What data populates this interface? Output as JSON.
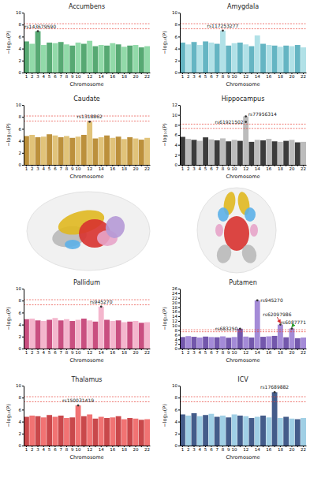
{
  "chart_data": [
    {
      "type": "manhattan",
      "title": "Accumbens",
      "x_label": "Chromosome",
      "y_label": "−log₁₀(P)",
      "categories": [
        "1",
        "2",
        "3",
        "4",
        "5",
        "6",
        "7",
        "8",
        "9",
        "10",
        null,
        "12",
        null,
        "14",
        null,
        "16",
        null,
        "18",
        null,
        "20",
        null,
        "22"
      ],
      "values": [
        5.2,
        4.8,
        6.9,
        4.6,
        5.0,
        4.9,
        5.1,
        4.7,
        4.5,
        5.0,
        4.8,
        5.3,
        4.4,
        4.6,
        4.5,
        4.9,
        4.7,
        4.3,
        4.5,
        4.6,
        4.2,
        4.4
      ],
      "colors": [
        "#3a9a5b",
        "#7fd49a",
        "#3a9a5b",
        "#7fd49a",
        "#3a9a5b",
        "#7fd49a",
        "#3a9a5b",
        "#7fd49a",
        "#3a9a5b",
        "#7fd49a",
        "#3a9a5b",
        "#7fd49a",
        "#3a9a5b",
        "#7fd49a",
        "#3a9a5b",
        "#7fd49a",
        "#3a9a5b",
        "#7fd49a",
        "#3a9a5b",
        "#7fd49a",
        "#3a9a5b",
        "#7fd49a"
      ],
      "ylim": [
        0,
        10
      ],
      "yticks": [
        0,
        2,
        4,
        6,
        8,
        10
      ],
      "threshold_lines": [
        7.3,
        8.15
      ],
      "annotations": [
        {
          "text": "rs143679590",
          "chromosome": 3,
          "y": 6.9
        }
      ]
    },
    {
      "type": "manhattan",
      "title": "Amygdala",
      "x_label": "Chromosome",
      "y_label": "−log₁₀(P)",
      "categories": [
        "1",
        "2",
        "3",
        "4",
        "5",
        "6",
        "7",
        "8",
        "9",
        "10",
        null,
        "12",
        null,
        "14",
        null,
        "16",
        null,
        "18",
        null,
        "20",
        null,
        "22"
      ],
      "values": [
        5.0,
        4.7,
        5.1,
        4.6,
        5.2,
        5.0,
        4.8,
        7.0,
        4.5,
        4.9,
        5.0,
        4.7,
        4.4,
        6.2,
        4.8,
        4.6,
        4.5,
        4.3,
        4.5,
        4.4,
        4.6,
        4.2
      ],
      "colors": [
        "#4aa8b8",
        "#a3dce3",
        "#4aa8b8",
        "#a3dce3",
        "#4aa8b8",
        "#a3dce3",
        "#4aa8b8",
        "#a3dce3",
        "#4aa8b8",
        "#a3dce3",
        "#4aa8b8",
        "#a3dce3",
        "#4aa8b8",
        "#a3dce3",
        "#4aa8b8",
        "#a3dce3",
        "#4aa8b8",
        "#a3dce3",
        "#4aa8b8",
        "#a3dce3",
        "#4aa8b8",
        "#a3dce3"
      ],
      "ylim": [
        0,
        10
      ],
      "yticks": [
        0,
        2,
        4,
        6,
        8,
        10
      ],
      "threshold_lines": [
        7.3,
        8.15
      ],
      "annotations": [
        {
          "text": "rs117253277",
          "chromosome": 8,
          "y": 7.0
        }
      ]
    },
    {
      "type": "manhattan",
      "title": "Caudate",
      "x_label": "Chromosome",
      "y_label": "−log₁₀(P)",
      "categories": [
        "1",
        "2",
        "3",
        "4",
        "5",
        "6",
        "7",
        "8",
        "9",
        "10",
        null,
        "12",
        null,
        "14",
        null,
        "16",
        null,
        "18",
        null,
        "20",
        null,
        "22"
      ],
      "values": [
        4.8,
        5.0,
        4.6,
        4.7,
        5.1,
        4.9,
        4.6,
        4.8,
        4.5,
        4.7,
        5.0,
        7.2,
        4.4,
        4.6,
        4.9,
        4.5,
        4.7,
        4.3,
        4.6,
        4.4,
        4.2,
        4.5
      ],
      "colors": [
        "#b07d1a",
        "#dcb863",
        "#b07d1a",
        "#dcb863",
        "#b07d1a",
        "#dcb863",
        "#b07d1a",
        "#dcb863",
        "#b07d1a",
        "#dcb863",
        "#b07d1a",
        "#dcb863",
        "#b07d1a",
        "#dcb863",
        "#b07d1a",
        "#dcb863",
        "#b07d1a",
        "#dcb863",
        "#b07d1a",
        "#dcb863",
        "#b07d1a",
        "#dcb863"
      ],
      "ylim": [
        0,
        10
      ],
      "yticks": [
        0,
        2,
        4,
        6,
        8,
        10
      ],
      "threshold_lines": [
        7.3,
        8.15
      ],
      "annotations": [
        {
          "text": "rs1318862",
          "chromosome": 12,
          "y": 7.2
        }
      ]
    },
    {
      "type": "manhattan",
      "title": "Hippocampus",
      "x_label": "Chromosome",
      "y_label": "−log₁₀(P)",
      "categories": [
        "1",
        "2",
        "3",
        "4",
        "5",
        "6",
        "7",
        "8",
        "9",
        "10",
        null,
        "12",
        null,
        "14",
        null,
        "16",
        null,
        "18",
        null,
        "20",
        null,
        "22"
      ],
      "values": [
        5.6,
        5.2,
        5.0,
        4.8,
        5.5,
        5.1,
        4.9,
        5.3,
        4.7,
        5.0,
        4.8,
        9.7,
        4.6,
        5.0,
        4.9,
        5.2,
        4.7,
        4.6,
        4.8,
        5.0,
        4.5,
        4.6
      ],
      "colors": [
        "#1a1a1a",
        "#b0b0b0",
        "#1a1a1a",
        "#b0b0b0",
        "#1a1a1a",
        "#b0b0b0",
        "#1a1a1a",
        "#b0b0b0",
        "#1a1a1a",
        "#b0b0b0",
        "#1a1a1a",
        "#b0b0b0",
        "#1a1a1a",
        "#b0b0b0",
        "#1a1a1a",
        "#b0b0b0",
        "#1a1a1a",
        "#b0b0b0",
        "#1a1a1a",
        "#b0b0b0",
        "#1a1a1a",
        "#b0b0b0"
      ],
      "ylim": [
        0,
        12
      ],
      "yticks": [
        0,
        2,
        4,
        6,
        8,
        10,
        12
      ],
      "threshold_lines": [
        7.3,
        8.15
      ],
      "annotations": [
        {
          "text": "rs61921502",
          "chromosome": 12,
          "y": 8.6
        },
        {
          "text": "rs77956314",
          "chromosome": 12,
          "y": 9.7
        }
      ]
    },
    {
      "type": "manhattan",
      "title": "Pallidum",
      "x_label": "Chromosome",
      "y_label": "−log₁₀(P)",
      "categories": [
        "1",
        "2",
        "3",
        "4",
        "5",
        "6",
        "7",
        "8",
        "9",
        "10",
        null,
        "12",
        null,
        "14",
        null,
        "16",
        null,
        "18",
        null,
        "20",
        null,
        "22"
      ],
      "values": [
        4.9,
        5.0,
        4.7,
        4.6,
        4.8,
        5.1,
        4.7,
        4.9,
        4.6,
        4.8,
        5.0,
        4.7,
        4.5,
        7.0,
        4.8,
        4.6,
        4.7,
        4.4,
        4.5,
        4.6,
        4.3,
        4.4
      ],
      "colors": [
        "#c0306a",
        "#f2a9c4",
        "#c0306a",
        "#f2a9c4",
        "#c0306a",
        "#f2a9c4",
        "#c0306a",
        "#f2a9c4",
        "#c0306a",
        "#f2a9c4",
        "#c0306a",
        "#f2a9c4",
        "#c0306a",
        "#f2a9c4",
        "#c0306a",
        "#f2a9c4",
        "#c0306a",
        "#f2a9c4",
        "#c0306a",
        "#f2a9c4",
        "#c0306a",
        "#f2a9c4"
      ],
      "ylim": [
        0,
        10
      ],
      "yticks": [
        0,
        2,
        4,
        6,
        8,
        10
      ],
      "threshold_lines": [
        7.3,
        8.15
      ],
      "annotations": [
        {
          "text": "rs945270",
          "chromosome": 14,
          "y": 7.0
        }
      ]
    },
    {
      "type": "manhattan",
      "title": "Putamen",
      "x_label": "Chromosome",
      "y_label": "−log₁₀(P)",
      "categories": [
        "1",
        "2",
        "3",
        "4",
        "5",
        "6",
        "7",
        "8",
        "9",
        "10",
        null,
        "12",
        null,
        "14",
        null,
        "16",
        null,
        "18",
        null,
        "20",
        null,
        "22"
      ],
      "values": [
        5.0,
        5.4,
        5.1,
        4.8,
        5.2,
        5.0,
        4.9,
        5.3,
        4.7,
        5.0,
        8.6,
        5.2,
        4.8,
        20.9,
        5.1,
        5.3,
        5.5,
        10.4,
        4.9,
        8.7,
        4.5,
        4.8
      ],
      "colors": [
        "#5b3a9e",
        "#9477d0",
        "#5b3a9e",
        "#9477d0",
        "#5b3a9e",
        "#9477d0",
        "#5b3a9e",
        "#9477d0",
        "#5b3a9e",
        "#9477d0",
        "#5b3a9e",
        "#9477d0",
        "#5b3a9e",
        "#9477d0",
        "#5b3a9e",
        "#9477d0",
        "#5b3a9e",
        "#9477d0",
        "#5b3a9e",
        "#9477d0",
        "#5b3a9e",
        "#9477d0"
      ],
      "ylim": [
        0,
        26
      ],
      "yticks": [
        0,
        2,
        4,
        6,
        8,
        10,
        12,
        14,
        16,
        18,
        20,
        22,
        24,
        26
      ],
      "threshold_lines": [
        7.3,
        8.15
      ],
      "annotations": [
        {
          "text": "rs945270",
          "chromosome": 14,
          "y": 20.9
        },
        {
          "text": "rs683250",
          "chromosome": 11,
          "y": 8.6
        },
        {
          "text": "rs62097986",
          "chromosome": 18,
          "y": 10.4
        },
        {
          "text": "rs6087771",
          "chromosome": 20,
          "y": 8.7
        }
      ]
    },
    {
      "type": "manhattan",
      "title": "Thalamus",
      "x_label": "Chromosome",
      "y_label": "−log₁₀(P)",
      "categories": [
        "1",
        "2",
        "3",
        "4",
        "5",
        "6",
        "7",
        "8",
        "9",
        "10",
        null,
        "12",
        null,
        "14",
        null,
        "16",
        null,
        "18",
        null,
        "20",
        null,
        "22"
      ],
      "values": [
        4.8,
        5.0,
        4.9,
        4.7,
        5.1,
        4.8,
        5.0,
        4.6,
        4.7,
        6.7,
        4.9,
        5.2,
        4.5,
        4.8,
        4.6,
        4.7,
        4.9,
        4.4,
        4.6,
        4.5,
        4.3,
        4.4
      ],
      "colors": [
        "#c0282b",
        "#ee5a5a",
        "#c0282b",
        "#ee5a5a",
        "#c0282b",
        "#ee5a5a",
        "#c0282b",
        "#ee5a5a",
        "#c0282b",
        "#ee5a5a",
        "#c0282b",
        "#ee5a5a",
        "#c0282b",
        "#ee5a5a",
        "#c0282b",
        "#ee5a5a",
        "#c0282b",
        "#ee5a5a",
        "#c0282b",
        "#ee5a5a",
        "#c0282b",
        "#ee5a5a"
      ],
      "ylim": [
        0,
        10
      ],
      "yticks": [
        0,
        2,
        4,
        6,
        8,
        10
      ],
      "threshold_lines": [
        7.3,
        8.15
      ],
      "annotations": [
        {
          "text": "rs150031419",
          "chromosome": 10,
          "y": 6.7
        }
      ]
    },
    {
      "type": "manhattan",
      "title": "ICV",
      "x_label": "Chromosome",
      "y_label": "−log₁₀(P)",
      "categories": [
        "1",
        "2",
        "3",
        "4",
        "5",
        "6",
        "7",
        "8",
        "9",
        "10",
        null,
        "12",
        null,
        "14",
        null,
        "16",
        null,
        "18",
        null,
        "20",
        null,
        "22"
      ],
      "values": [
        5.2,
        5.0,
        5.4,
        4.9,
        5.1,
        5.3,
        4.8,
        5.0,
        4.7,
        5.2,
        5.0,
        4.9,
        4.6,
        4.8,
        5.0,
        4.7,
        8.9,
        4.6,
        4.8,
        4.5,
        4.4,
        4.6
      ],
      "colors": [
        "#233f75",
        "#8fc7e0",
        "#233f75",
        "#8fc7e0",
        "#233f75",
        "#8fc7e0",
        "#233f75",
        "#8fc7e0",
        "#233f75",
        "#8fc7e0",
        "#233f75",
        "#8fc7e0",
        "#233f75",
        "#8fc7e0",
        "#233f75",
        "#8fc7e0",
        "#233f75",
        "#8fc7e0",
        "#233f75",
        "#8fc7e0",
        "#233f75",
        "#8fc7e0"
      ],
      "ylim": [
        0,
        10
      ],
      "yticks": [
        0,
        2,
        4,
        6,
        8,
        10
      ],
      "threshold_lines": [
        7.3,
        8.15
      ],
      "annotations": [
        {
          "text": "rs17689882",
          "chromosome": 17,
          "y": 8.9
        }
      ]
    }
  ]
}
